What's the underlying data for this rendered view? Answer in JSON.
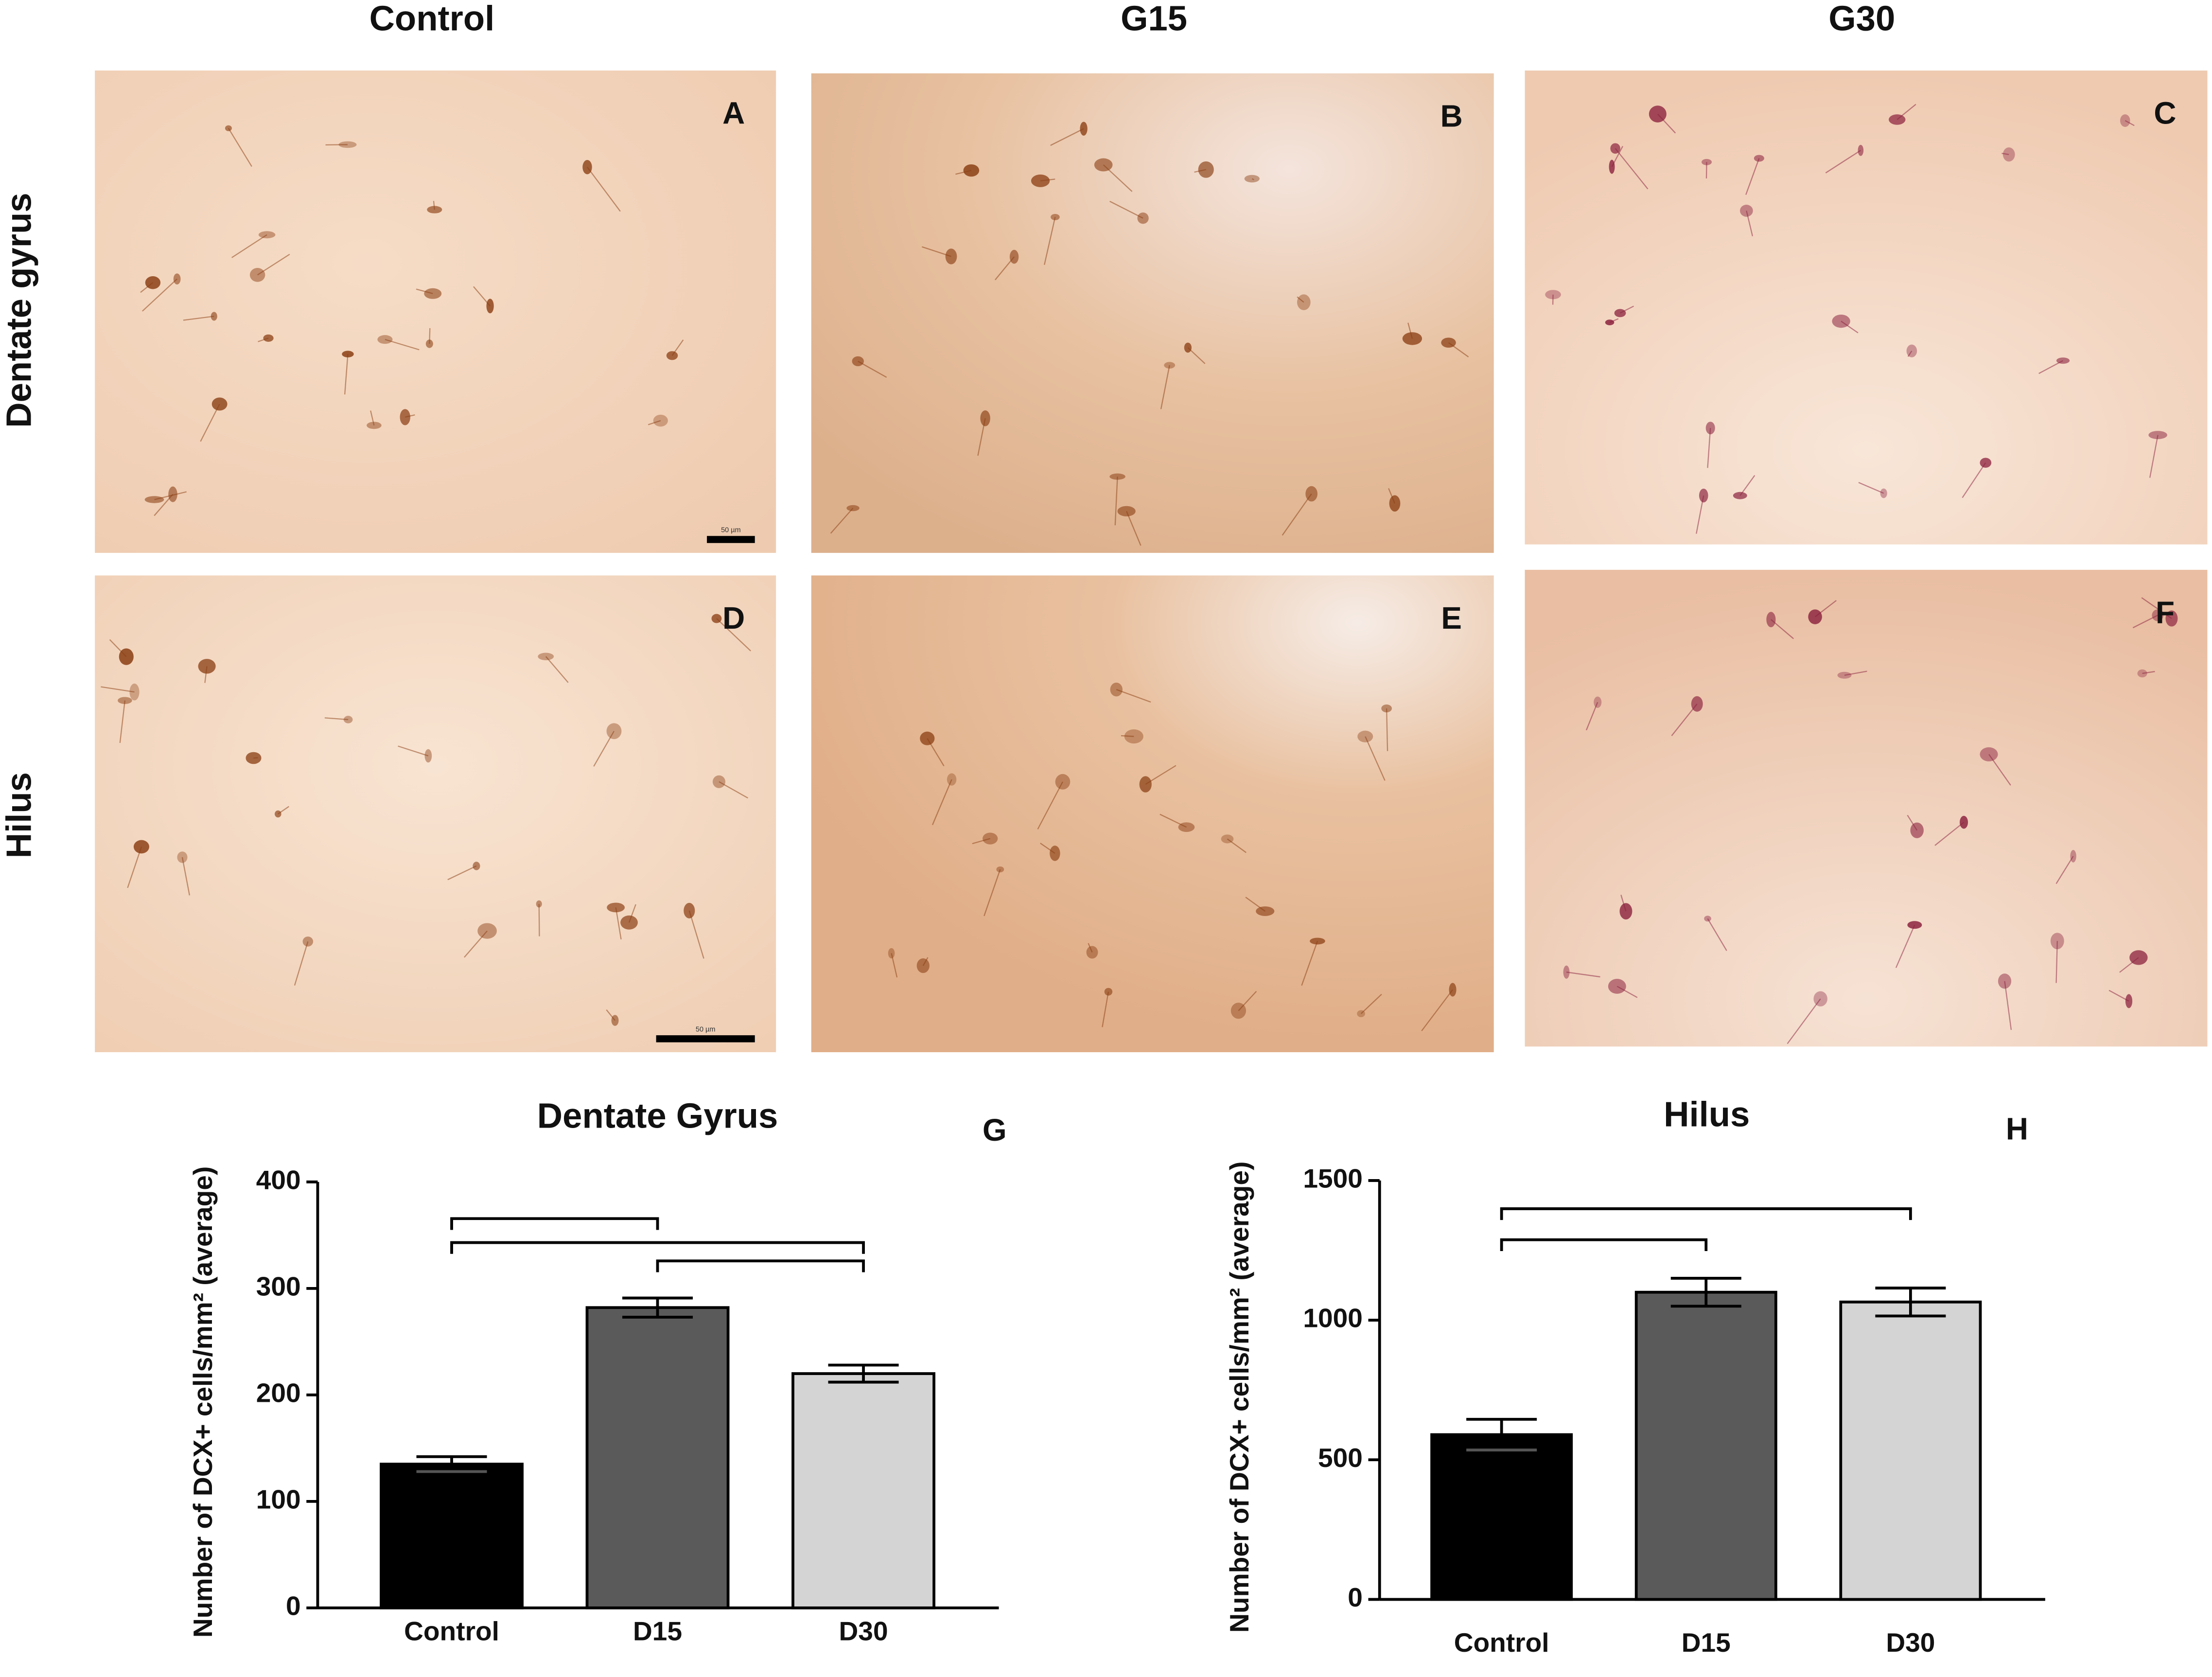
{
  "column_headers": [
    "Control",
    "G15",
    "G30"
  ],
  "row_headers": [
    "Dentate gyrus",
    "Hilus"
  ],
  "panels": [
    {
      "letter": "A",
      "scale_bar_label": "50 µm"
    },
    {
      "letter": "B"
    },
    {
      "letter": "C"
    },
    {
      "letter": "D",
      "scale_bar_label": "50 µm"
    },
    {
      "letter": "E"
    },
    {
      "letter": "F"
    }
  ],
  "chart_data": [
    {
      "type": "bar",
      "title": "Dentate Gyrus",
      "panel_letter": "G",
      "y_label": "Number of DCX+ cells/mm² (average)",
      "categories": [
        "Control",
        "D15",
        "D30"
      ],
      "values": [
        135,
        282,
        220
      ],
      "errors": [
        7,
        9,
        8
      ],
      "colors": [
        "#000000",
        "#5a5a5a",
        "#d4d4d4"
      ],
      "ylim": [
        0,
        400
      ],
      "yticks": [
        0,
        100,
        200,
        300,
        400
      ]
    },
    {
      "type": "bar",
      "title": "Hilus",
      "panel_letter": "H",
      "y_label": "Number of DCX+ cells/mm² (average)",
      "categories": [
        "Control",
        "D15",
        "D30"
      ],
      "values": [
        590,
        1100,
        1065
      ],
      "errors": [
        55,
        50,
        50
      ],
      "colors": [
        "#000000",
        "#5a5a5a",
        "#d4d4d4"
      ],
      "ylim": [
        0,
        1500
      ],
      "yticks": [
        0,
        500,
        1000,
        1500
      ]
    }
  ]
}
